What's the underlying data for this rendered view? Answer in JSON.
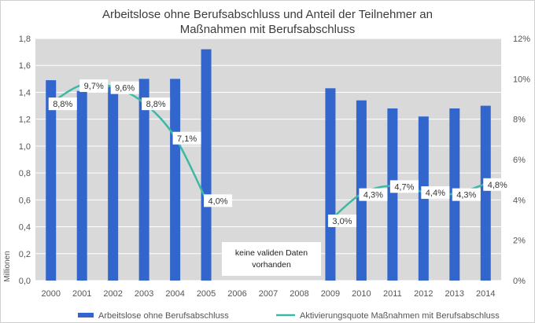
{
  "chart_data": {
    "type": "bar",
    "title_lines": [
      "Arbeitslose ohne Berufsabschluss und Anteil der Teilnehmer an",
      "Maßnahmen mit Berufsabschluss"
    ],
    "categories": [
      "2000",
      "2001",
      "2002",
      "2003",
      "2004",
      "2005",
      "2006",
      "2007",
      "2008",
      "2009",
      "2010",
      "2011",
      "2012",
      "2013",
      "2014"
    ],
    "series": [
      {
        "name": "Arbeitslose ohne Berufsabschluss",
        "type": "bar",
        "axis": "left",
        "color": "#3366cc",
        "values": [
          1.49,
          1.41,
          1.44,
          1.5,
          1.5,
          1.72,
          null,
          null,
          null,
          1.43,
          1.34,
          1.28,
          1.22,
          1.28,
          1.3
        ]
      },
      {
        "name": "Aktivierungsquote Maßnahmen mit Berufsabschluss",
        "type": "line",
        "axis": "right",
        "color": "#3cb9a4",
        "values": [
          8.8,
          9.7,
          9.6,
          8.8,
          7.1,
          4.0,
          null,
          null,
          null,
          3.0,
          4.3,
          4.7,
          4.4,
          4.3,
          4.8
        ],
        "labels": [
          "8,8%",
          "9,7%",
          "9,6%",
          "8,8%",
          "7,1%",
          "4,0%",
          "",
          "",
          "",
          "3,0%",
          "4,3%",
          "4,7%",
          "4,4%",
          "4,3%",
          "4,8%"
        ]
      }
    ],
    "ylabel": "Millionen",
    "ylim": [
      0,
      1.8
    ],
    "y_ticks": [
      "0,0",
      "0,2",
      "0,4",
      "0,6",
      "0,8",
      "1,0",
      "1,2",
      "1,4",
      "1,6",
      "1,8"
    ],
    "y2lim": [
      0,
      12
    ],
    "y2_ticks": [
      "0%",
      "2%",
      "4%",
      "6%",
      "8%",
      "10%",
      "12%"
    ],
    "annotation_lines": [
      "keine validen  Daten",
      "vorhanden"
    ],
    "grid": true,
    "legend_position": "bottom"
  }
}
